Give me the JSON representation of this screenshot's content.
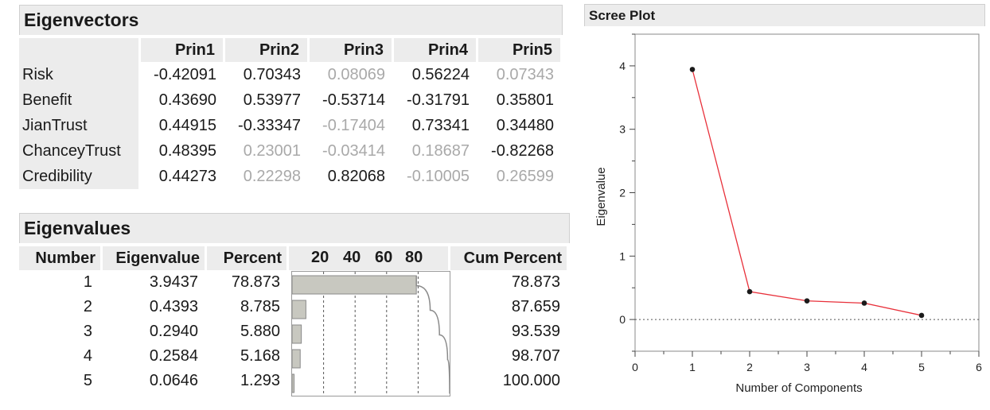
{
  "eigenvectors": {
    "title": "Eigenvectors",
    "columns": [
      "Prin1",
      "Prin2",
      "Prin3",
      "Prin4",
      "Prin5"
    ],
    "rows": [
      {
        "label": "Risk",
        "values": [
          "-0.42091",
          "0.70343",
          "0.08069",
          "0.56224",
          "0.07343"
        ],
        "faint": [
          false,
          false,
          true,
          false,
          true
        ]
      },
      {
        "label": "Benefit",
        "values": [
          "0.43690",
          "0.53977",
          "-0.53714",
          "-0.31791",
          "0.35801"
        ],
        "faint": [
          false,
          false,
          false,
          false,
          false
        ]
      },
      {
        "label": "JianTrust",
        "values": [
          "0.44915",
          "-0.33347",
          "-0.17404",
          "0.73341",
          "0.34480"
        ],
        "faint": [
          false,
          false,
          true,
          false,
          false
        ]
      },
      {
        "label": "ChanceyTrust",
        "values": [
          "0.48395",
          "0.23001",
          "-0.03414",
          "0.18687",
          "-0.82268"
        ],
        "faint": [
          false,
          true,
          true,
          true,
          false
        ]
      },
      {
        "label": "Credibility",
        "values": [
          "0.44273",
          "0.22298",
          "0.82068",
          "-0.10005",
          "0.26599"
        ],
        "faint": [
          false,
          true,
          false,
          true,
          true
        ]
      }
    ]
  },
  "eigenvalues": {
    "title": "Eigenvalues",
    "headers": {
      "number": "Number",
      "eigenvalue": "Eigenvalue",
      "percent": "Percent",
      "cum_percent": "Cum Percent"
    },
    "axis_ticks": [
      "20",
      "40",
      "60",
      "80"
    ],
    "rows": [
      {
        "number": "1",
        "eigenvalue": "3.9437",
        "percent": "78.873",
        "cum": "78.873"
      },
      {
        "number": "2",
        "eigenvalue": "0.4393",
        "percent": "8.785",
        "cum": "87.659"
      },
      {
        "number": "3",
        "eigenvalue": "0.2940",
        "percent": "5.880",
        "cum": "93.539"
      },
      {
        "number": "4",
        "eigenvalue": "0.2584",
        "percent": "5.168",
        "cum": "98.707"
      },
      {
        "number": "5",
        "eigenvalue": "0.0646",
        "percent": "1.293",
        "cum": "100.000"
      }
    ]
  },
  "chart_data": [
    {
      "type": "bar",
      "categories": [
        "1",
        "2",
        "3",
        "4",
        "5"
      ],
      "values": [
        78.873,
        8.785,
        5.88,
        5.168,
        1.293
      ],
      "cumulative": [
        78.873,
        87.659,
        93.539,
        98.707,
        100.0
      ],
      "xlim": [
        0,
        100
      ],
      "tick_labels": [
        "20",
        "40",
        "60",
        "80"
      ],
      "grid": true,
      "colors": {
        "bar": "#c8c8c0",
        "bar_border": "#8a8a8a",
        "cum_line": "#8a8a8a"
      }
    },
    {
      "type": "line",
      "title": "Scree Plot",
      "xlabel": "Number of Components",
      "ylabel": "Eigenvalue",
      "x": [
        1,
        2,
        3,
        4,
        5
      ],
      "y": [
        3.9437,
        0.4393,
        0.294,
        0.2584,
        0.0646
      ],
      "xlim": [
        0,
        6
      ],
      "ylim": [
        -0.5,
        4.5
      ],
      "xticks": [
        "0",
        "1",
        "2",
        "3",
        "4",
        "5",
        "6"
      ],
      "yticks": [
        "0",
        "1",
        "2",
        "3",
        "4"
      ],
      "reference_line_y": 0,
      "colors": {
        "line": "#e8303a",
        "point": "#1a1a1a",
        "reference": "#555555"
      }
    }
  ]
}
